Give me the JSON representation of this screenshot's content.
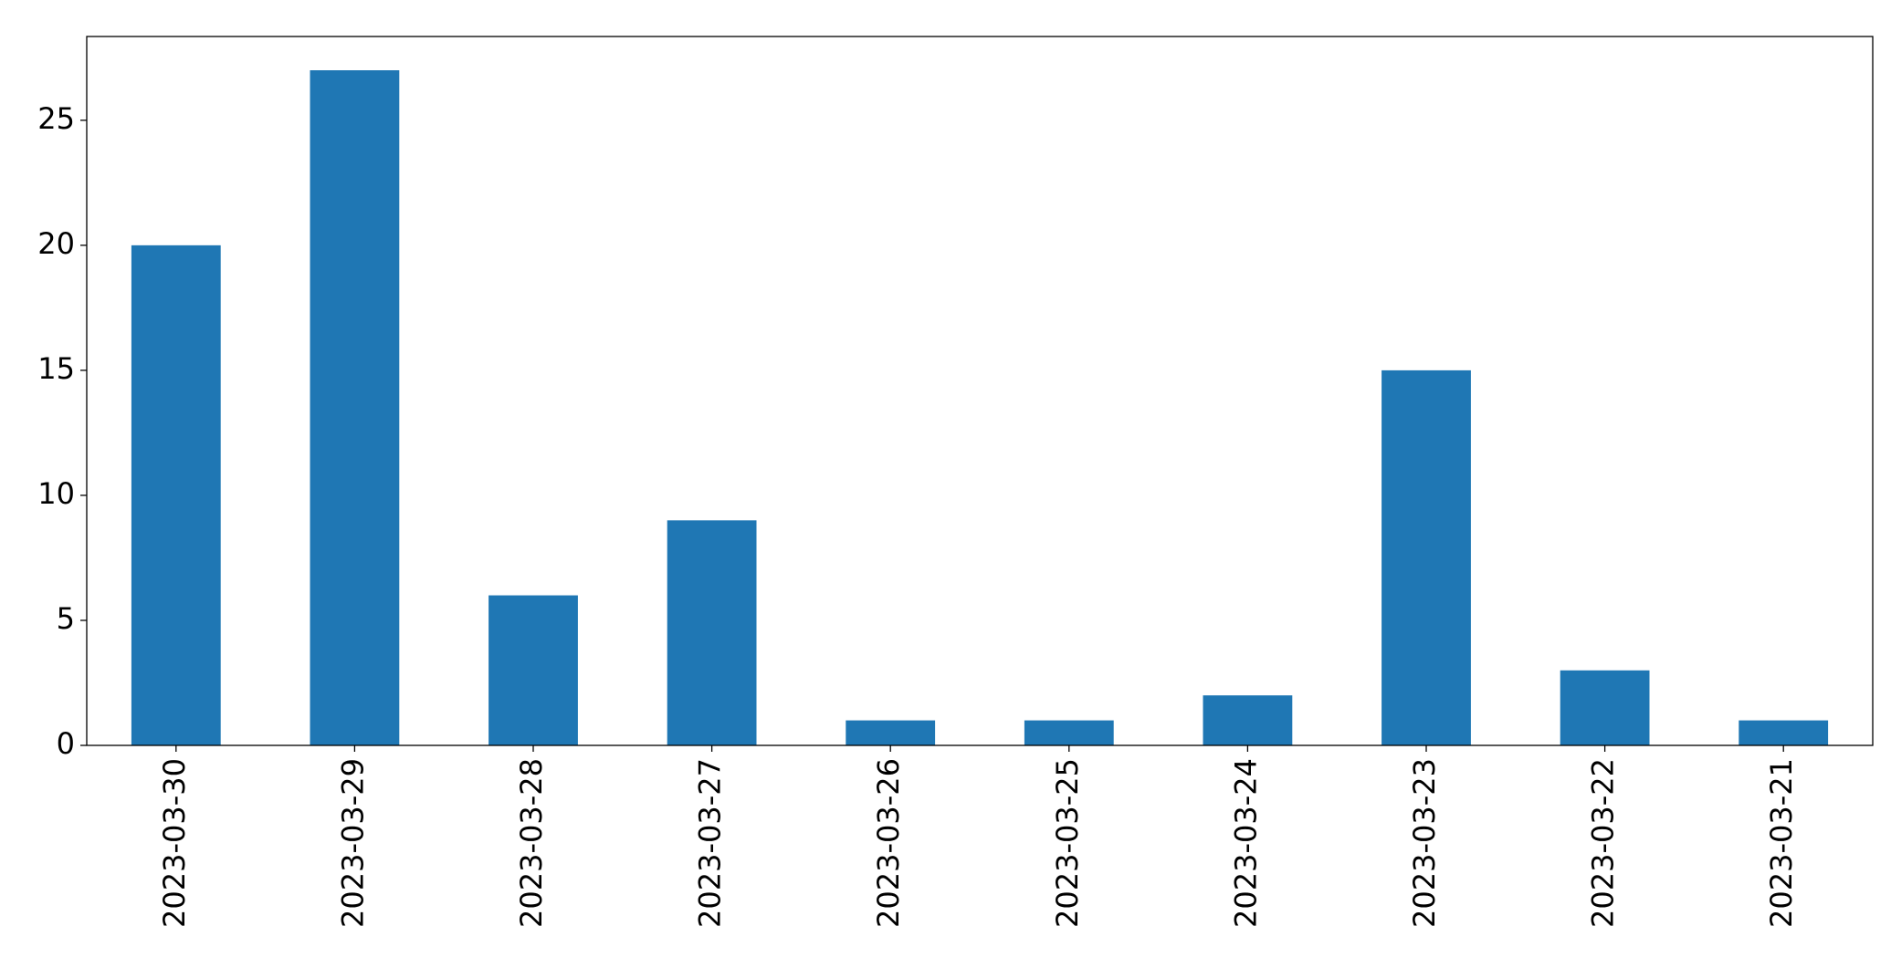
{
  "chart_data": {
    "type": "bar",
    "categories": [
      "2023-03-30",
      "2023-03-29",
      "2023-03-28",
      "2023-03-27",
      "2023-03-26",
      "2023-03-25",
      "2023-03-24",
      "2023-03-23",
      "2023-03-22",
      "2023-03-21"
    ],
    "values": [
      20,
      27,
      6,
      9,
      1,
      1,
      2,
      15,
      3,
      1
    ],
    "color": "#1f77b4",
    "ylim": [
      0,
      28.35
    ],
    "yticks": [
      0,
      5,
      10,
      15,
      20,
      25
    ],
    "grid": false
  }
}
